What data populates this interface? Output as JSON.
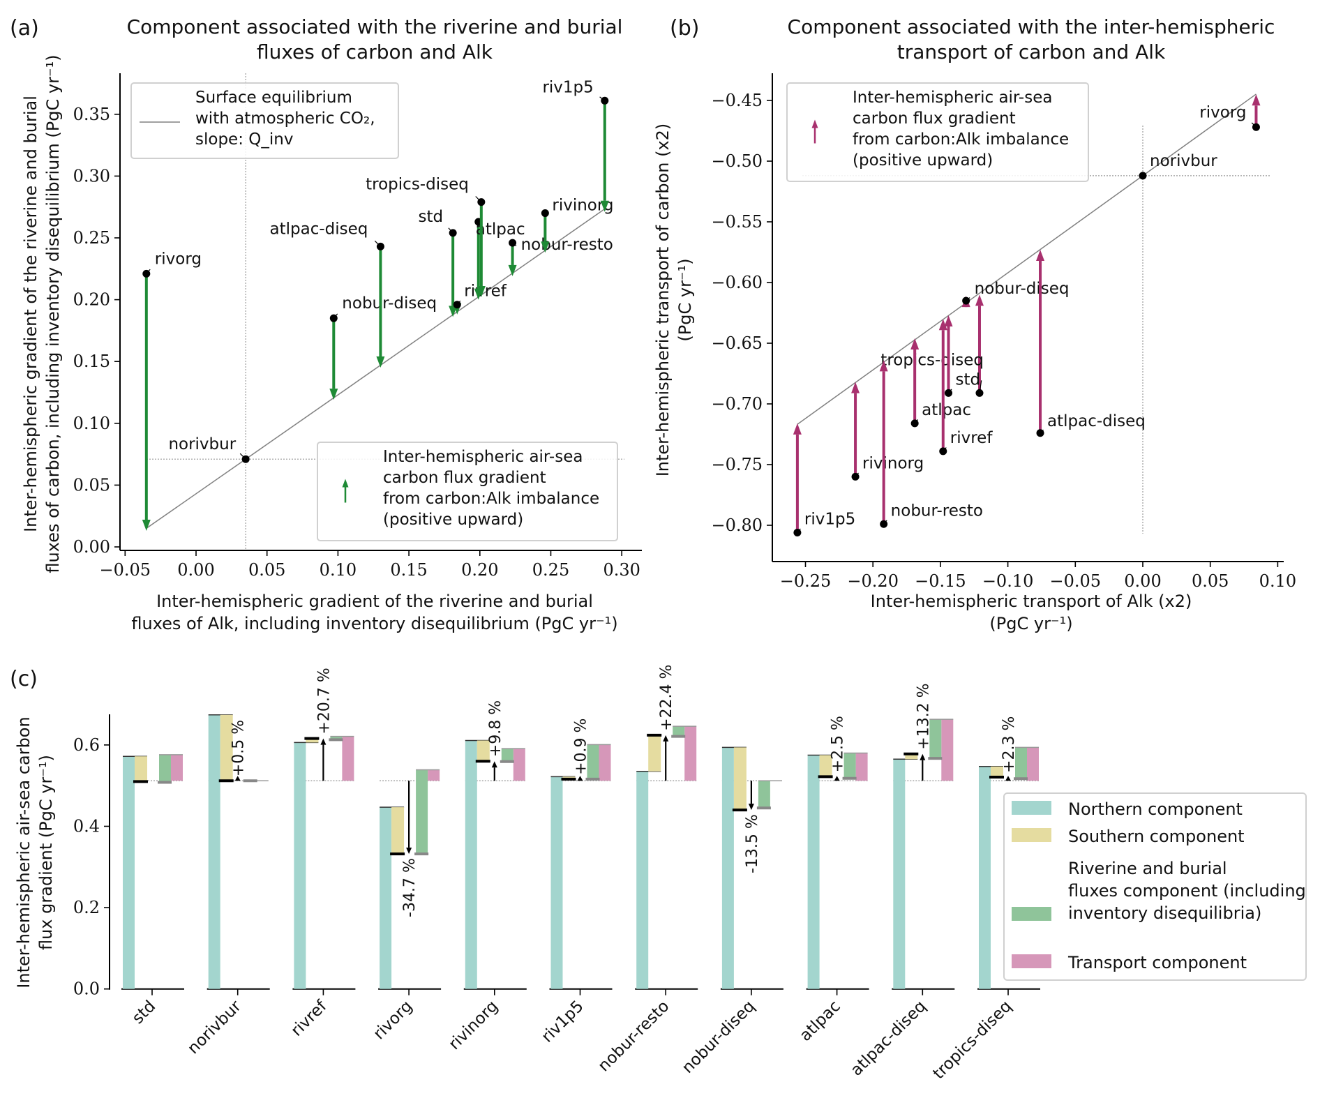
{
  "chart_data": [
    {
      "panel": "a",
      "panel_label": "(a)",
      "type": "scatter",
      "title": "Component associated with the riverine and burial fluxes of carbon and Alk",
      "title_lines": [
        "Component associated with the riverine and burial",
        "fluxes of carbon and Alk"
      ],
      "xlabel_lines": [
        "Inter-hemispheric gradient of the riverine and burial",
        "fluxes of Alk, including inventory disequilibrium (PgC yr⁻¹)"
      ],
      "ylabel_lines": [
        "Inter-hemispheric gradient of the riverine and burial",
        "fluxes of carbon, including inventory disequilibrium (PgC yr⁻¹)"
      ],
      "xlim": [
        -0.055,
        0.305
      ],
      "ylim": [
        -0.003,
        0.385
      ],
      "xticks": [
        -0.05,
        0.0,
        0.05,
        0.1,
        0.15,
        0.2,
        0.25,
        0.3
      ],
      "xtick_labels": [
        "−0.05",
        "0.00",
        "0.05",
        "0.10",
        "0.15",
        "0.20",
        "0.25",
        "0.30"
      ],
      "yticks": [
        0.0,
        0.05,
        0.1,
        0.15,
        0.2,
        0.25,
        0.3,
        0.35
      ],
      "ytick_labels": [
        "0.00",
        "0.05",
        "0.10",
        "0.15",
        "0.20",
        "0.25",
        "0.30",
        "0.35"
      ],
      "arrow_color": "#1e8a35",
      "reference_point": {
        "name": "norivbur",
        "x": 0.035,
        "y": 0.071
      },
      "equilibrium_line": {
        "slope": 0.8,
        "x_range": [
          -0.035,
          0.288
        ],
        "intercept_at_x0": 0.041
      },
      "points": [
        {
          "name": "rivorg",
          "x": -0.035,
          "y": 0.221,
          "arrow_to": 0.013
        },
        {
          "name": "nobur-diseq",
          "x": 0.097,
          "y": 0.185,
          "arrow_to": 0.119
        },
        {
          "name": "atlpac-diseq",
          "x": 0.13,
          "y": 0.243,
          "arrow_to": 0.145
        },
        {
          "name": "std",
          "x": 0.181,
          "y": 0.254,
          "arrow_to": 0.186
        },
        {
          "name": "rivref",
          "x": 0.184,
          "y": 0.196,
          "arrow_to": 0.188
        },
        {
          "name": "atlpac",
          "x": 0.199,
          "y": 0.263,
          "arrow_to": 0.2
        },
        {
          "name": "tropics-diseq",
          "x": 0.201,
          "y": 0.279,
          "arrow_to": 0.202
        },
        {
          "name": "nobur-resto",
          "x": 0.223,
          "y": 0.246,
          "arrow_to": 0.219
        },
        {
          "name": "rivinorg",
          "x": 0.246,
          "y": 0.27,
          "arrow_to": 0.238
        },
        {
          "name": "riv1p5",
          "x": 0.288,
          "y": 0.361,
          "arrow_to": 0.271
        }
      ],
      "legends": [
        {
          "kind": "line",
          "label_lines": [
            "Surface equilibrium",
            "with atmospheric CO₂,",
            "slope: Q_inv"
          ],
          "placement": "top-left"
        },
        {
          "kind": "arrow",
          "label_lines": [
            "Inter-hemispheric air-sea",
            "carbon flux gradient",
            "from carbon:Alk imbalance",
            "(positive upward)"
          ],
          "placement": "lower-right"
        }
      ]
    },
    {
      "panel": "b",
      "panel_label": "(b)",
      "type": "scatter",
      "title": "Component associated with the inter-hemispheric transport of carbon and Alk",
      "title_lines": [
        "Component associated with the inter-hemispheric",
        "transport of carbon and Alk"
      ],
      "xlabel_lines": [
        "Inter-hemispheric transport of Alk (x2)",
        "(PgC yr⁻¹)"
      ],
      "ylabel_lines": [
        "Inter-hemispheric transport of carbon (x2)",
        "(PgC yr⁻¹)"
      ],
      "xlim": [
        -0.276,
        0.101
      ],
      "ylim": [
        -0.83,
        -0.43
      ],
      "xticks": [
        -0.25,
        -0.2,
        -0.15,
        -0.1,
        -0.05,
        0.0,
        0.05,
        0.1
      ],
      "xtick_labels": [
        "−0.25",
        "−0.20",
        "−0.15",
        "−0.10",
        "−0.05",
        "0.00",
        "0.05",
        "0.10"
      ],
      "yticks": [
        -0.8,
        -0.75,
        -0.7,
        -0.65,
        -0.6,
        -0.55,
        -0.5,
        -0.45
      ],
      "ytick_labels": [
        "−0.80",
        "−0.75",
        "−0.70",
        "−0.65",
        "−0.60",
        "−0.55",
        "−0.50",
        "−0.45"
      ],
      "arrow_color": "#a8306e",
      "reference_point": {
        "name": "norivbur",
        "x": 0.0,
        "y": -0.512
      },
      "equilibrium_line": {
        "slope": 0.8,
        "x_range": [
          -0.256,
          0.084
        ]
      },
      "points": [
        {
          "name": "rivorg",
          "x": 0.084,
          "y": -0.472,
          "arrow_to": -0.445
        },
        {
          "name": "nobur-diseq",
          "x": -0.131,
          "y": -0.615,
          "arrow_to": -0.611
        },
        {
          "name": "tropics-diseq",
          "x": -0.121,
          "y": -0.691,
          "arrow_to": -0.61
        },
        {
          "name": "std",
          "x": -0.144,
          "y": -0.691,
          "arrow_to": -0.627
        },
        {
          "name": "atlpac",
          "x": -0.169,
          "y": -0.716,
          "arrow_to": -0.646
        },
        {
          "name": "atlpac-diseq",
          "x": -0.076,
          "y": -0.724,
          "arrow_to": -0.573
        },
        {
          "name": "rivref",
          "x": -0.148,
          "y": -0.739,
          "arrow_to": -0.63
        },
        {
          "name": "rivinorg",
          "x": -0.213,
          "y": -0.76,
          "arrow_to": -0.682
        },
        {
          "name": "nobur-resto",
          "x": -0.192,
          "y": -0.799,
          "arrow_to": -0.664
        },
        {
          "name": "riv1p5",
          "x": -0.256,
          "y": -0.806,
          "arrow_to": -0.716
        }
      ],
      "legends": [
        {
          "kind": "arrow",
          "label_lines": [
            "Inter-hemispheric air-sea",
            "carbon flux gradient",
            "from carbon:Alk imbalance",
            "(positive upward)"
          ],
          "placement": "top-left"
        }
      ]
    },
    {
      "panel": "c",
      "panel_label": "(c)",
      "type": "bar",
      "title": "",
      "ylabel_lines": [
        "Inter-hemispheric air-sea carbon",
        "flux gradient (PgC yr⁻¹)"
      ],
      "ylim": [
        0.0,
        0.68
      ],
      "yticks": [
        0.0,
        0.2,
        0.4,
        0.6
      ],
      "ytick_labels": [
        "0.0",
        "0.2",
        "0.4",
        "0.6"
      ],
      "baseline_norivbur": 0.512,
      "categories": [
        "std",
        "norivbur",
        "rivref",
        "rivorg",
        "rivinorg",
        "riv1p5",
        "nobur-resto",
        "nobur-diseq",
        "atlpac",
        "atlpac-diseq",
        "tropics-diseq"
      ],
      "series": [
        {
          "name": "Northern component",
          "color": "#a3d5ce",
          "values": [
            0.572,
            0.674,
            0.606,
            0.447,
            0.611,
            0.522,
            0.535,
            0.594,
            0.575,
            0.565,
            0.547
          ]
        },
        {
          "name": "Southern component",
          "color": "#e5dca0",
          "values": [
            -0.062,
            -0.162,
            0.01,
            -0.115,
            -0.051,
            -0.006,
            0.089,
            -0.154,
            -0.053,
            0.013,
            -0.026
          ]
        },
        {
          "name": "Riverine and burial fluxes component (including inventory disequilibria)",
          "color": "#8fc49a",
          "values": [
            -0.068,
            0.0,
            -0.008,
            -0.207,
            -0.032,
            -0.085,
            -0.025,
            -0.067,
            -0.062,
            -0.096,
            -0.077
          ]
        },
        {
          "name": "Transport component",
          "color": "#d697b9",
          "values": [
            0.064,
            0.0,
            0.109,
            0.027,
            0.079,
            0.089,
            0.134,
            0.0,
            0.068,
            0.151,
            0.082
          ]
        }
      ],
      "totals": [
        0.51,
        0.512,
        0.616,
        0.332,
        0.56,
        0.516,
        0.624,
        0.44,
        0.522,
        0.578,
        0.521
      ],
      "percent_change_labels": [
        "",
        "+0.5 %",
        "+20.7 %",
        "-34.7 %",
        "+9.8 %",
        "+0.9 %",
        "+22.4 %",
        "-13.5 %",
        "+2.5 %",
        "+13.2 %",
        "+2.3 %"
      ],
      "legend": {
        "placement": "center-right",
        "entries": [
          {
            "label_lines": [
              "Northern component"
            ],
            "color": "#a3d5ce"
          },
          {
            "label_lines": [
              "Southern component"
            ],
            "color": "#e5dca0"
          },
          {
            "label_lines": [
              "Riverine and burial",
              "fluxes component (including",
              "inventory disequilibria)"
            ],
            "color": "#8fc49a"
          },
          {
            "label_lines": [
              "Transport component"
            ],
            "color": "#d697b9"
          }
        ]
      }
    }
  ]
}
